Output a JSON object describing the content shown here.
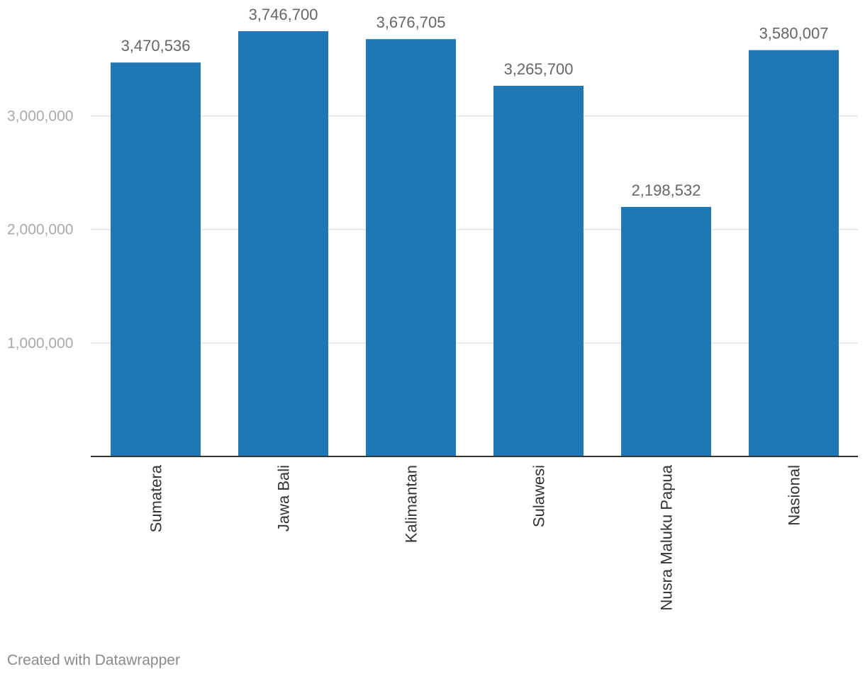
{
  "chart_data": {
    "type": "bar",
    "categories": [
      "Sumatera",
      "Jawa Bali",
      "Kalimantan",
      "Sulawesi",
      "Nusra Maluku Papua",
      "Nasional"
    ],
    "values": [
      3470536,
      3746700,
      3676705,
      3265700,
      2198532,
      3580007
    ],
    "value_labels": [
      "3,470,536",
      "3,746,700",
      "3,676,705",
      "3,265,700",
      "2,198,532",
      "3,580,007"
    ],
    "y_ticks": [
      {
        "value": 1000000,
        "label": "1,000,000"
      },
      {
        "value": 2000000,
        "label": "2,000,000"
      },
      {
        "value": 3000000,
        "label": "3,000,000"
      }
    ],
    "ylim": [
      0,
      3746700
    ],
    "grid": true,
    "bar_color": "#1f77b4",
    "title": "",
    "xlabel": "",
    "ylabel": ""
  },
  "footer": {
    "credit": "Created with Datawrapper"
  }
}
